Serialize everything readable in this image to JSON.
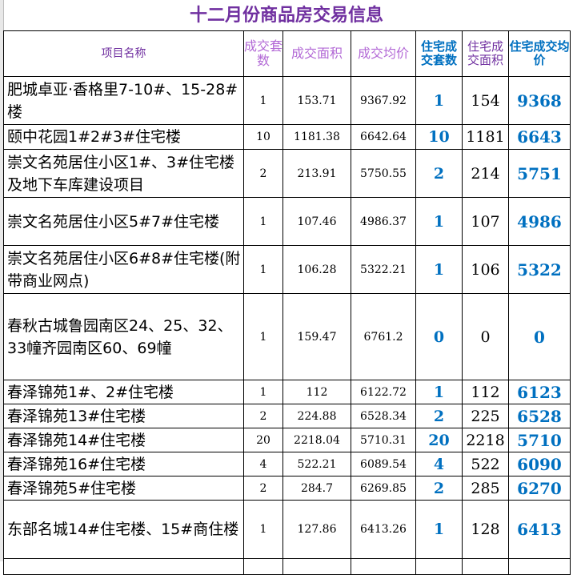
{
  "title": "十二月份商品房交易信息",
  "headers": [
    "项目名称",
    "成交套数",
    "成交面积",
    "成交均价",
    "住宅成交套数",
    "住宅成交面积",
    "住宅成交均价"
  ],
  "colors": {
    "title": "#7030a0",
    "accent_blue": "#0070c0",
    "header_light_purple": "#b36ad6"
  },
  "rows": [
    {
      "name": "肥城卓亚·香格里7-10#、15-28#楼",
      "count": "1",
      "area": "153.71",
      "price": "9367.92",
      "res_count": "1",
      "res_area": "154",
      "res_price": "9368"
    },
    {
      "name": "颐中花园1#2#3#住宅楼",
      "count": "10",
      "area": "1181.38",
      "price": "6642.64",
      "res_count": "10",
      "res_area": "1181",
      "res_price": "6643"
    },
    {
      "name": "崇文名苑居住小区1#、3#住宅楼及地下车库建设项目",
      "count": "2",
      "area": "213.91",
      "price": "5750.55",
      "res_count": "2",
      "res_area": "214",
      "res_price": "5751"
    },
    {
      "name": "崇文名苑居住小区5#7#住宅楼",
      "count": "1",
      "area": "107.46",
      "price": "4986.37",
      "res_count": "1",
      "res_area": "107",
      "res_price": "4986"
    },
    {
      "name": "崇文名苑居住小区6#8#住宅楼(附带商业网点)",
      "count": "1",
      "area": "106.28",
      "price": "5322.21",
      "res_count": "1",
      "res_area": "106",
      "res_price": "5322"
    },
    {
      "name": "春秋古城鲁园南区24、25、32、33幢齐园南区60、69幢",
      "count": "1",
      "area": "159.47",
      "price": "6761.2",
      "res_count": "0",
      "res_area": "0",
      "res_price": "0"
    },
    {
      "name": "春泽锦苑1#、2#住宅楼",
      "count": "1",
      "area": "112",
      "price": "6122.72",
      "res_count": "1",
      "res_area": "112",
      "res_price": "6123"
    },
    {
      "name": "春泽锦苑13#住宅楼",
      "count": "2",
      "area": "224.88",
      "price": "6528.34",
      "res_count": "2",
      "res_area": "225",
      "res_price": "6528"
    },
    {
      "name": "春泽锦苑14#住宅楼",
      "count": "20",
      "area": "2218.04",
      "price": "5710.31",
      "res_count": "20",
      "res_area": "2218",
      "res_price": "5710"
    },
    {
      "name": "春泽锦苑16#住宅楼",
      "count": "4",
      "area": "522.21",
      "price": "6089.54",
      "res_count": "4",
      "res_area": "522",
      "res_price": "6090"
    },
    {
      "name": "春泽锦苑5#住宅楼",
      "count": "2",
      "area": "284.7",
      "price": "6269.85",
      "res_count": "2",
      "res_area": "285",
      "res_price": "6270"
    },
    {
      "name": "东部名城14#住宅楼、15#商住楼",
      "count": "1",
      "area": "127.86",
      "price": "6413.26",
      "res_count": "1",
      "res_area": "128",
      "res_price": "6413"
    }
  ]
}
